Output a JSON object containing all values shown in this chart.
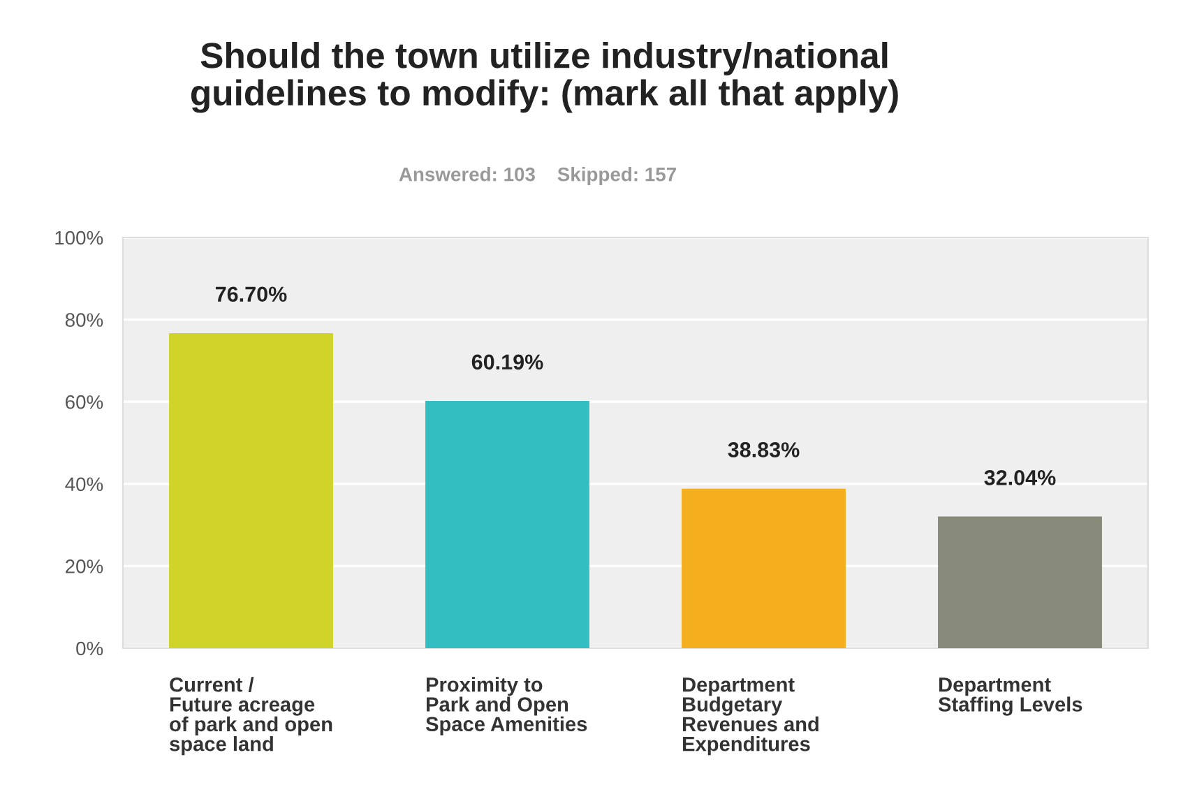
{
  "chart_data": {
    "type": "bar",
    "title": "Should the town utilize industry/national\nguidelines to modify: (mark all that apply)",
    "subtitle": "Answered: 103    Skipped: 157",
    "categories": [
      "Current /\nFuture acreage\nof park and open\nspace land",
      "Proximity to\nPark and Open\nSpace Amenities",
      "Department\nBudgetary\nRevenues and\nExpenditures",
      "Department\nStaffing Levels"
    ],
    "values": [
      76.7,
      60.19,
      38.83,
      32.04
    ],
    "colors": [
      "#d0d42a",
      "#33bfc1",
      "#f5af1e",
      "#878a78"
    ],
    "value_labels": [
      "76.70%",
      "60.19%",
      "38.83%",
      "32.04%"
    ],
    "ylim": [
      0,
      100
    ],
    "yticks": [
      {
        "value": 0,
        "label": "0%"
      },
      {
        "value": 20,
        "label": "20%"
      },
      {
        "value": 40,
        "label": "40%"
      },
      {
        "value": 60,
        "label": "60%"
      },
      {
        "value": 80,
        "label": "80%"
      },
      {
        "value": 100,
        "label": "100%"
      }
    ],
    "grid": "y"
  }
}
